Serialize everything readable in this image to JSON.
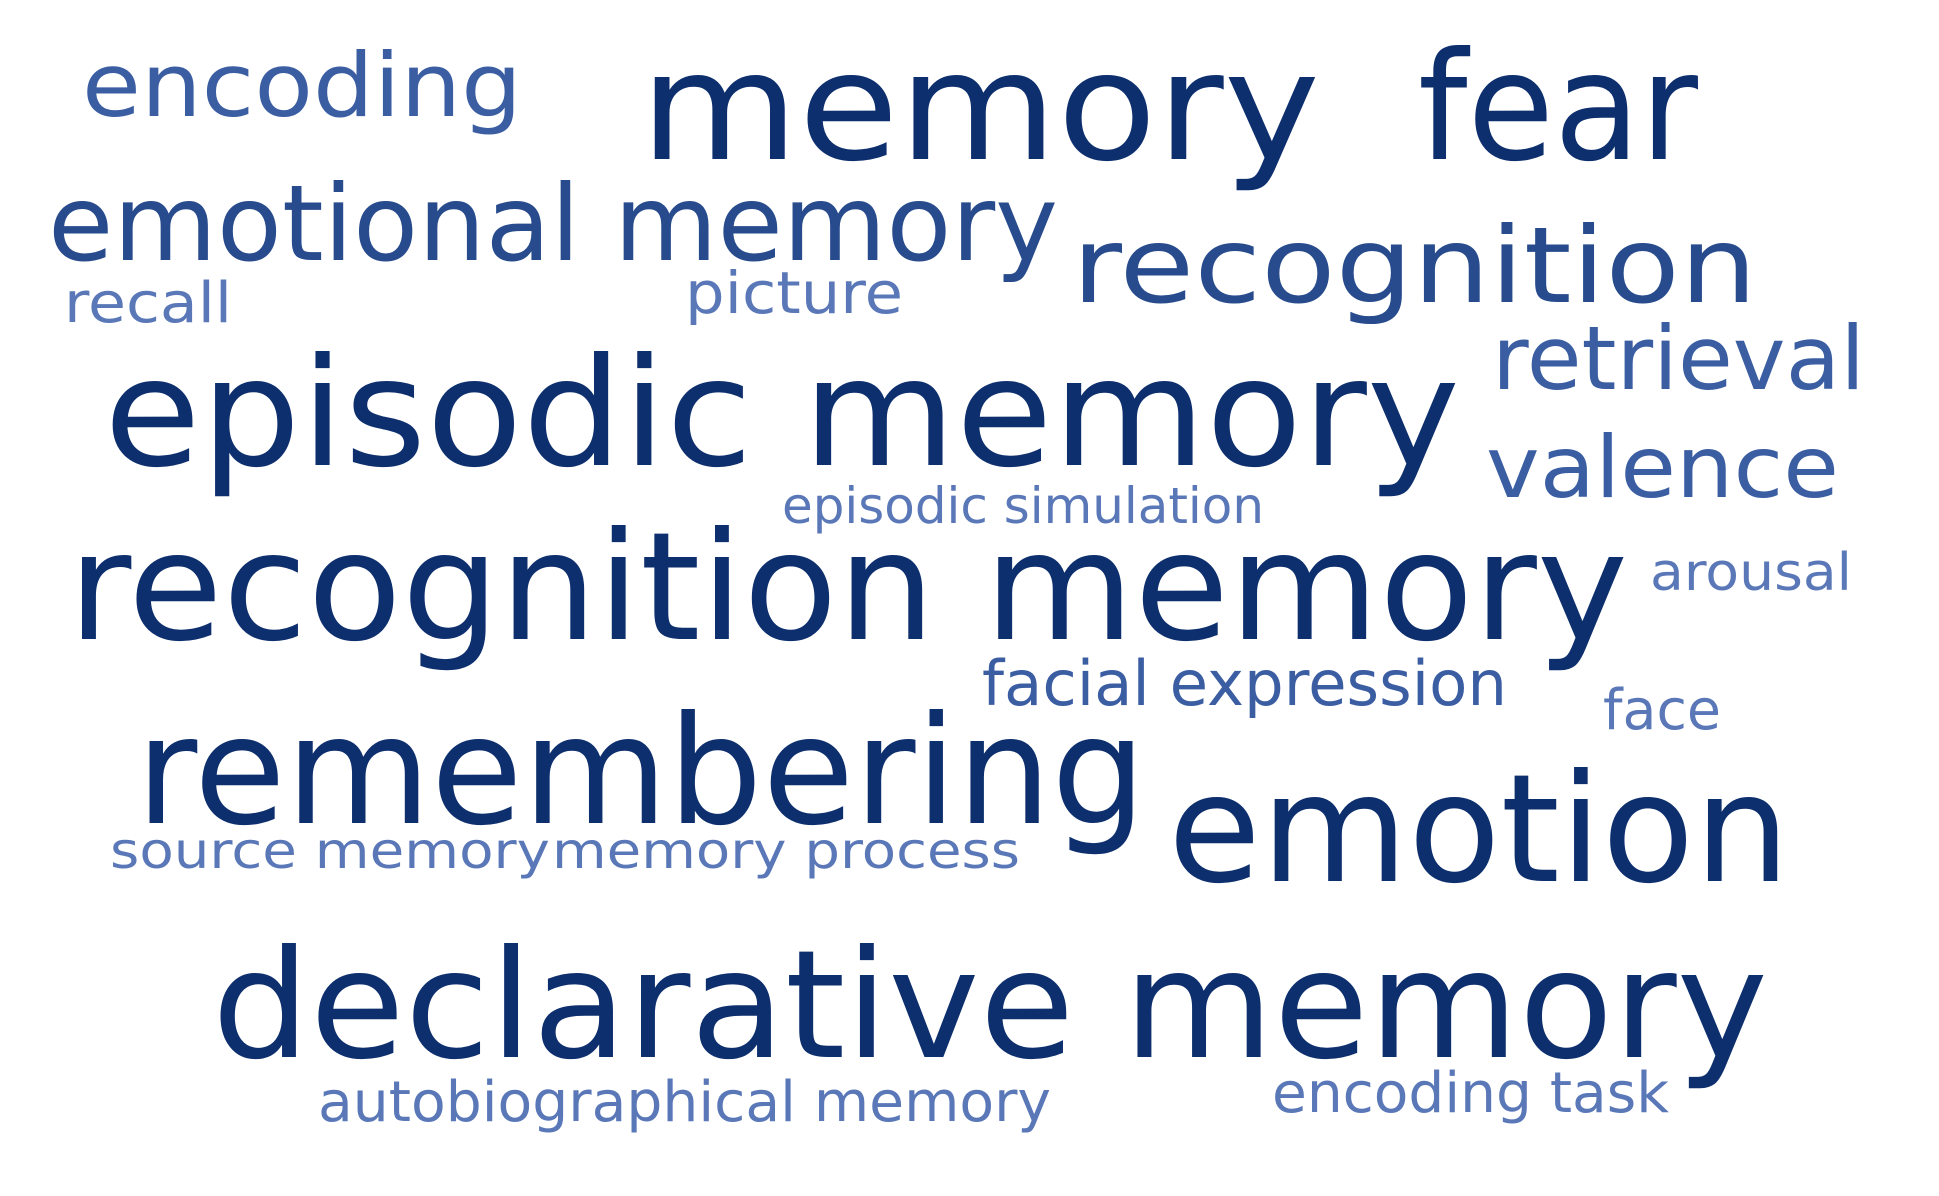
{
  "colors": {
    "background": "#ffffff",
    "tier1": "#0e2f6e",
    "tier2": "#274b8c",
    "tier3": "#3b5ea3",
    "tier4": "#5a78b8"
  },
  "words": [
    {
      "id": "memory",
      "text": "memory",
      "tier": "tier1"
    },
    {
      "id": "fear",
      "text": "fear",
      "tier": "tier1"
    },
    {
      "id": "encoding",
      "text": "encoding",
      "tier": "tier3"
    },
    {
      "id": "emotional-memory",
      "text": "emotional memory",
      "tier": "tier2"
    },
    {
      "id": "recognition",
      "text": "recognition",
      "tier": "tier2"
    },
    {
      "id": "recall",
      "text": "recall",
      "tier": "tier4"
    },
    {
      "id": "picture",
      "text": "picture",
      "tier": "tier4"
    },
    {
      "id": "retrieval",
      "text": "retrieval",
      "tier": "tier3"
    },
    {
      "id": "episodic-memory",
      "text": "episodic memory",
      "tier": "tier1"
    },
    {
      "id": "valence",
      "text": "valence",
      "tier": "tier3"
    },
    {
      "id": "episodic-simulation",
      "text": "episodic simulation",
      "tier": "tier4"
    },
    {
      "id": "recognition-memory",
      "text": "recognition memory",
      "tier": "tier1"
    },
    {
      "id": "arousal",
      "text": "arousal",
      "tier": "tier4"
    },
    {
      "id": "facial-expression",
      "text": "facial expression",
      "tier": "tier3"
    },
    {
      "id": "face",
      "text": "face",
      "tier": "tier4"
    },
    {
      "id": "remembering",
      "text": "remembering",
      "tier": "tier1"
    },
    {
      "id": "emotion",
      "text": "emotion",
      "tier": "tier1"
    },
    {
      "id": "source-memory",
      "text": "source memory",
      "tier": "tier4"
    },
    {
      "id": "memory-process",
      "text": "memory process",
      "tier": "tier4"
    },
    {
      "id": "declarative-memory",
      "text": "declarative memory",
      "tier": "tier1"
    },
    {
      "id": "autobiographical-memory",
      "text": "autobiographical memory",
      "tier": "tier4"
    },
    {
      "id": "encoding-task",
      "text": "encoding task",
      "tier": "tier4"
    }
  ]
}
